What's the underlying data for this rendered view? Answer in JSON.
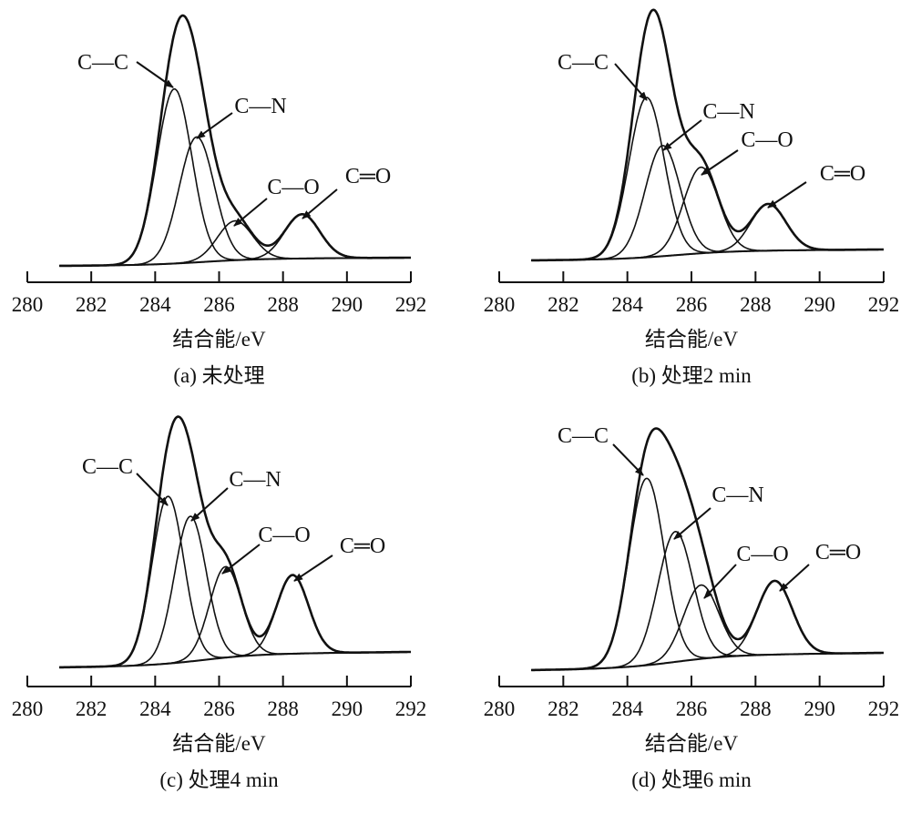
{
  "chart_data": [
    {
      "type": "line",
      "panel_label": "(a) 未处理",
      "xlabel": "结合能/eV",
      "ylabel": "",
      "xlim": [
        280,
        292
      ],
      "xticks": [
        "280",
        "282",
        "284",
        "286",
        "288",
        "290",
        "292"
      ],
      "x_data_range": [
        281,
        292
      ],
      "baseline": [
        0,
        3.3
      ],
      "sigma": 0.55,
      "series": [
        {
          "name": "C—C",
          "center": 284.6,
          "height": 71
        },
        {
          "name": "C—N",
          "center": 285.3,
          "height": 51
        },
        {
          "name": "C—O",
          "center": 286.5,
          "height": 16
        },
        {
          "name": "C═O",
          "center": 288.6,
          "height": 18
        }
      ]
    },
    {
      "type": "line",
      "panel_label": "(b) 处理2 min",
      "xlabel": "结合能/eV",
      "ylabel": "",
      "xlim": [
        280,
        292
      ],
      "xticks": [
        "280",
        "282",
        "284",
        "286",
        "288",
        "290",
        "292"
      ],
      "x_data_range": [
        281,
        292
      ],
      "baseline": [
        0,
        4
      ],
      "sigma": 0.55,
      "series": [
        {
          "name": "C—C",
          "center": 284.6,
          "height": 65
        },
        {
          "name": "C—N",
          "center": 285.1,
          "height": 45
        },
        {
          "name": "C—O",
          "center": 286.3,
          "height": 35
        },
        {
          "name": "C═O",
          "center": 288.4,
          "height": 19
        }
      ]
    },
    {
      "type": "line",
      "panel_label": "(c) 处理4 min",
      "xlabel": "结合能/eV",
      "ylabel": "",
      "xlim": [
        280,
        292
      ],
      "xticks": [
        "280",
        "282",
        "284",
        "286",
        "288",
        "290",
        "292"
      ],
      "x_data_range": [
        281,
        292
      ],
      "baseline": [
        0,
        6
      ],
      "sigma": 0.5,
      "series": [
        {
          "name": "C—C",
          "center": 284.4,
          "height": 68
        },
        {
          "name": "C—N",
          "center": 285.1,
          "height": 59
        },
        {
          "name": "C—O",
          "center": 286.2,
          "height": 37
        },
        {
          "name": "C═O",
          "center": 288.3,
          "height": 32
        }
      ]
    },
    {
      "type": "line",
      "panel_label": "(d) 处理6 min",
      "xlabel": "结合能/eV",
      "ylabel": "",
      "xlim": [
        280,
        292
      ],
      "xticks": [
        "280",
        "282",
        "284",
        "286",
        "288",
        "290",
        "292"
      ],
      "x_data_range": [
        281,
        292
      ],
      "baseline": [
        0,
        6.5
      ],
      "sigma": 0.55,
      "series": [
        {
          "name": "C—C",
          "center": 284.6,
          "height": 76
        },
        {
          "name": "C—N",
          "center": 285.5,
          "height": 53
        },
        {
          "name": "C—O",
          "center": 286.3,
          "height": 30
        },
        {
          "name": "C═O",
          "center": 288.6,
          "height": 30
        }
      ]
    }
  ]
}
